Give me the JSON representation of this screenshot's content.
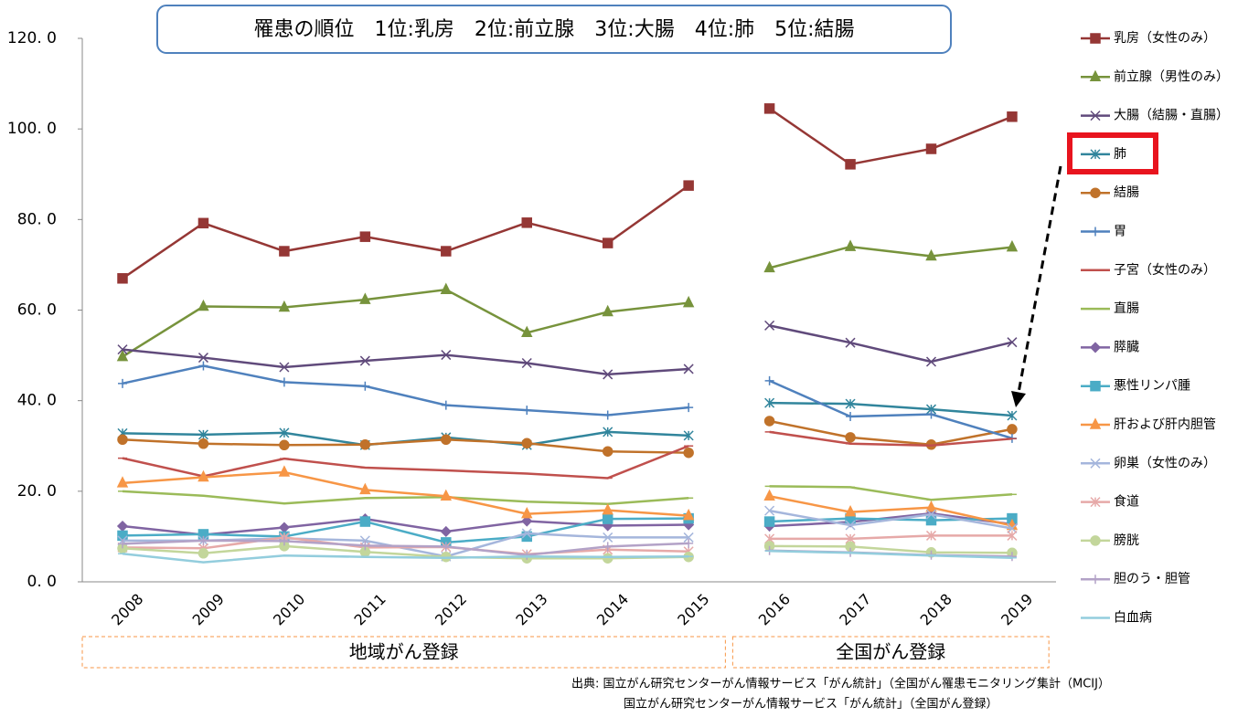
{
  "chart_data": {
    "type": "line",
    "title": "罹患の順位　1位:乳房　2位:前立腺　3位:大腸　4位:肺　5位:結腸",
    "categories": [
      "2008",
      "2009",
      "2010",
      "2011",
      "2012",
      "2013",
      "2014",
      "2015",
      "2016",
      "2017",
      "2018",
      "2019"
    ],
    "groups": [
      {
        "label": "地域がん登録",
        "span": 8
      },
      {
        "label": "全国がん登録",
        "span": 4
      }
    ],
    "ylim": [
      0,
      120
    ],
    "yticks": [
      {
        "value": 0,
        "label": "0. 0"
      },
      {
        "value": 20,
        "label": "20. 0"
      },
      {
        "value": 40,
        "label": "40. 0"
      },
      {
        "value": 60,
        "label": "60. 0"
      },
      {
        "value": 80,
        "label": "80. 0"
      },
      {
        "value": 100,
        "label": "100. 0"
      },
      {
        "value": 120,
        "label": "120. 0"
      }
    ],
    "grid": false,
    "legend": "right",
    "series": [
      {
        "name": "乳房（女性のみ）",
        "color": "#953735",
        "marker": "square",
        "values": [
          67,
          79.2,
          73,
          76.2,
          73,
          79.3,
          74.8,
          87.5,
          104.5,
          92.2,
          95.6,
          102.7
        ]
      },
      {
        "name": "前立腺（男性のみ）",
        "color": "#77933c",
        "marker": "triangle",
        "values": [
          49.7,
          60.8,
          60.6,
          62.3,
          64.5,
          55,
          59.6,
          61.6,
          69.3,
          74,
          71.9,
          73.9
        ]
      },
      {
        "name": "大腸（結腸・直腸）",
        "color": "#604a7b",
        "marker": "x",
        "values": [
          51.3,
          49.5,
          47.4,
          48.8,
          50.1,
          48.3,
          45.8,
          47,
          56.6,
          52.8,
          48.6,
          52.9
        ]
      },
      {
        "name": "肺",
        "color": "#31859c",
        "marker": "asterisk",
        "values": [
          32.8,
          32.5,
          32.9,
          30.2,
          31.9,
          30.2,
          33.1,
          32.3,
          39.5,
          39.3,
          38.1,
          36.7
        ]
      },
      {
        "name": "結腸",
        "color": "#c0722a",
        "marker": "circle",
        "values": [
          31.4,
          30.5,
          30.2,
          30.3,
          31.4,
          30.6,
          28.8,
          28.5,
          35.5,
          31.9,
          30.3,
          33.7
        ]
      },
      {
        "name": "胃",
        "color": "#4f81bd",
        "marker": "plus",
        "values": [
          43.8,
          47.7,
          44.1,
          43.2,
          39,
          37.9,
          36.8,
          38.5,
          44.4,
          36.5,
          37,
          31.7
        ]
      },
      {
        "name": "子宮（女性のみ）",
        "color": "#c0504d",
        "marker": "dash",
        "values": [
          27.3,
          23.3,
          27.2,
          25.2,
          24.6,
          23.9,
          22.9,
          30,
          33.1,
          30.5,
          30.1,
          31.6
        ]
      },
      {
        "name": "直腸",
        "color": "#9bbb59",
        "marker": "dash",
        "values": [
          20,
          19,
          17.3,
          18.5,
          18.7,
          17.7,
          17.2,
          18.5,
          21.1,
          20.9,
          18.1,
          19.3
        ]
      },
      {
        "name": "膵臓",
        "color": "#8064a2",
        "marker": "diamond",
        "values": [
          12.3,
          10.4,
          12,
          13.9,
          11.1,
          13.4,
          12.4,
          12.6,
          12.3,
          13.2,
          15.1,
          12.7
        ]
      },
      {
        "name": "悪性リンパ腫",
        "color": "#4bacc6",
        "marker": "square",
        "values": [
          10.2,
          10.5,
          10,
          13.3,
          8.7,
          10,
          13.9,
          14,
          13.3,
          14,
          13.6,
          14
        ]
      },
      {
        "name": "肝および肝内胆管",
        "color": "#f79646",
        "marker": "triangle",
        "values": [
          21.8,
          23.1,
          24.2,
          20.3,
          18.9,
          15,
          15.8,
          14.6,
          18.9,
          15.4,
          16.4,
          12.4
        ]
      },
      {
        "name": "卵巣（女性のみ）",
        "color": "#a5b6dc",
        "marker": "x",
        "values": [
          9.1,
          9.1,
          9.6,
          9.1,
          5.6,
          10.7,
          9.8,
          9.8,
          15.7,
          12.5,
          14.9,
          11.8
        ]
      },
      {
        "name": "食道",
        "color": "#e6a9a8",
        "marker": "asterisk",
        "values": [
          7.6,
          7.4,
          9.8,
          7.6,
          7.7,
          6.1,
          7.1,
          6.7,
          9.5,
          9.5,
          10.2,
          10.2
        ]
      },
      {
        "name": "膀胱",
        "color": "#c3d69b",
        "marker": "circle",
        "values": [
          7.4,
          6.3,
          7.9,
          6.6,
          5.5,
          5.2,
          5.2,
          5.5,
          7.9,
          7.8,
          6.5,
          6.4
        ]
      },
      {
        "name": "胆のう・胆管",
        "color": "#b3a2c7",
        "marker": "plus",
        "values": [
          8.4,
          9.1,
          9,
          8,
          7.8,
          5.9,
          7.8,
          8.5,
          6.9,
          6.5,
          5.9,
          5.6
        ]
      },
      {
        "name": "白血病",
        "color": "#93cddd",
        "marker": "dash",
        "values": [
          6.2,
          4.3,
          5.8,
          5.5,
          5.3,
          5.6,
          5.5,
          5.6,
          6.8,
          6.4,
          5.8,
          5.3
        ]
      }
    ],
    "source": [
      "出典:  国立がん研究センターがん情報サービス「がん統計」（全国がん罹患モニタリング集計（MCIJ）",
      "国立がん研究センターがん情報サービス「がん統計」（全国がん登録）"
    ]
  }
}
